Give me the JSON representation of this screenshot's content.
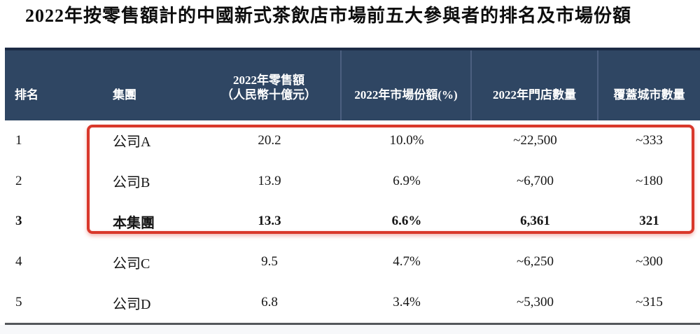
{
  "title": "2022年按零售額計的中國新式茶飲店市場前五大參與者的排名及市場份額",
  "header": {
    "rank": "排名",
    "group": "集團",
    "retail_line1": "2022年零售額",
    "retail_line2": "（人民幣十億元）",
    "share": "2022年市場份額(%)",
    "stores": "2022年門店數量",
    "cities": "覆蓋城市數量"
  },
  "rows": [
    {
      "rank": "1",
      "group": "公司A",
      "retail": "20.2",
      "share": "10.0%",
      "stores": "~22,500",
      "cities": "~333",
      "bold": false,
      "highlighted": true
    },
    {
      "rank": "2",
      "group": "公司B",
      "retail": "13.9",
      "share": "6.9%",
      "stores": "~6,700",
      "cities": "~180",
      "bold": false,
      "highlighted": true
    },
    {
      "rank": "3",
      "group": "本集團",
      "retail": "13.3",
      "share": "6.6%",
      "stores": "6,361",
      "cities": "321",
      "bold": true,
      "highlighted": true
    },
    {
      "rank": "4",
      "group": "公司C",
      "retail": "9.5",
      "share": "4.7%",
      "stores": "~6,250",
      "cities": "~300",
      "bold": false,
      "highlighted": false
    },
    {
      "rank": "5",
      "group": "公司D",
      "retail": "6.8",
      "share": "3.4%",
      "stores": "~5,300",
      "cities": "~315",
      "bold": false,
      "highlighted": false
    }
  ],
  "colors": {
    "page_bg": "#ffffff",
    "header_bg": "#2f4663",
    "header_top_border": "#1c2b45",
    "column_separator": "#4c6080",
    "header_text": "#ffffff",
    "body_text": "#161616",
    "highlight_border": "#d9382b",
    "bottom_divider": "#54575b",
    "footer_strip": "#f7f8fa"
  }
}
